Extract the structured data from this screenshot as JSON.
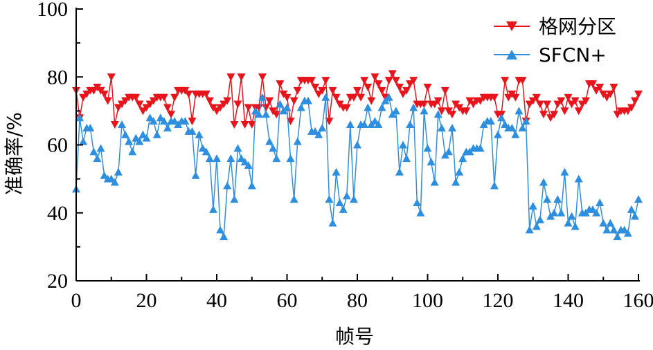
{
  "chart_data": {
    "type": "line",
    "xlabel": "帧号",
    "ylabel": "准确率/%",
    "xlim": [
      0,
      160
    ],
    "ylim": [
      20,
      100
    ],
    "x_ticks": [
      "0",
      "20",
      "40",
      "60",
      "80",
      "100",
      "120",
      "140",
      "160"
    ],
    "y_ticks": [
      "20",
      "40",
      "60",
      "80",
      "100"
    ],
    "legend_position": "top-right",
    "grid": false,
    "series": [
      {
        "name": "格网分区",
        "color": "#e8141c",
        "marker": "triangle-down",
        "values": [
          76,
          68,
          74,
          75,
          76,
          76,
          77,
          76,
          75,
          73,
          80,
          66,
          71,
          72,
          73,
          74,
          74,
          74,
          72,
          70,
          71,
          72,
          73,
          74,
          74,
          74,
          71,
          69,
          74,
          76,
          76,
          76,
          75,
          67,
          75,
          75,
          75,
          75,
          73,
          71,
          70,
          71,
          72,
          73,
          80,
          66,
          72,
          80,
          66,
          71,
          66,
          71,
          71,
          80,
          71,
          73,
          70,
          69,
          78,
          75,
          74,
          67,
          73,
          76,
          79,
          79,
          79,
          79,
          77,
          75,
          76,
          79,
          67,
          76,
          74,
          72,
          71,
          71,
          74,
          74,
          76,
          74,
          79,
          77,
          73,
          80,
          78,
          76,
          74,
          79,
          81,
          79,
          77,
          75,
          76,
          78,
          79,
          72,
          72,
          72,
          77,
          72,
          72,
          73,
          70,
          76,
          70,
          69,
          72,
          71,
          70,
          70,
          73,
          72,
          73,
          73,
          74,
          74,
          74,
          74,
          69,
          69,
          79,
          74,
          75,
          74,
          79,
          79,
          67,
          72,
          73,
          74,
          72,
          69,
          72,
          68,
          69,
          72,
          73,
          70,
          74,
          72,
          73,
          70,
          72,
          73,
          78,
          78,
          76,
          77,
          75,
          74,
          75,
          77,
          69,
          70,
          70,
          70,
          71,
          73,
          75
        ]
      },
      {
        "name": "SFCN+",
        "color": "#2f8fdf",
        "marker": "triangle-up",
        "values": [
          47,
          68,
          61,
          65,
          65,
          58,
          56,
          59,
          51,
          50,
          50,
          49,
          52,
          66,
          63,
          61,
          58,
          62,
          61,
          63,
          62,
          68,
          67,
          63,
          68,
          67,
          65,
          67,
          67,
          66,
          67,
          67,
          64,
          64,
          51,
          63,
          59,
          58,
          56,
          41,
          56,
          35,
          33,
          48,
          56,
          44,
          59,
          56,
          55,
          54,
          48,
          70,
          69,
          74,
          69,
          61,
          59,
          56,
          72,
          70,
          71,
          56,
          44,
          61,
          71,
          73,
          73,
          64,
          64,
          63,
          65,
          74,
          44,
          37,
          52,
          43,
          41,
          45,
          66,
          44,
          60,
          66,
          66,
          71,
          66,
          67,
          66,
          71,
          73,
          74,
          69,
          70,
          52,
          60,
          56,
          66,
          71,
          43,
          40,
          70,
          59,
          55,
          49,
          69,
          65,
          57,
          58,
          65,
          49,
          52,
          56,
          58,
          58,
          59,
          59,
          59,
          66,
          67,
          67,
          48,
          63,
          68,
          66,
          65,
          65,
          63,
          70,
          65,
          67,
          35,
          42,
          36,
          38,
          49,
          44,
          39,
          40,
          44,
          40,
          52,
          37,
          39,
          36,
          50,
          40,
          40,
          41,
          41,
          40,
          43,
          37,
          35,
          37,
          35,
          33,
          35,
          35,
          34,
          41,
          39,
          44
        ]
      }
    ]
  }
}
